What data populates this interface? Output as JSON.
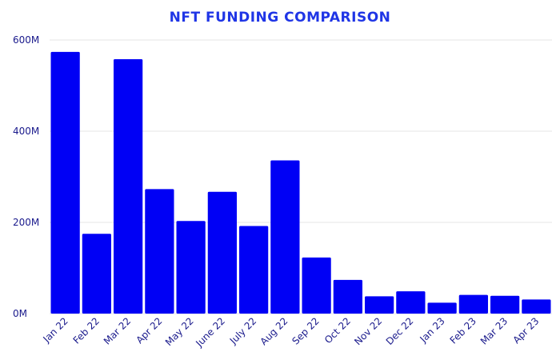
{
  "chart_data": {
    "type": "bar",
    "title": "NFT FUNDING COMPARISON",
    "xlabel": "",
    "ylabel": "",
    "categories": [
      "Jan 22",
      "Feb 22",
      "Mar 22",
      "Apr 22",
      "May 22",
      "June 22",
      "July 22",
      "Aug 22",
      "Sep 22",
      "Oct 22",
      "Nov 22",
      "Dec 22",
      "Jan 23",
      "Feb 23",
      "Mar 23",
      "Apr 23"
    ],
    "values": [
      574,
      175,
      558,
      273,
      203,
      267,
      192,
      336,
      123,
      74,
      38,
      49,
      24,
      41,
      39,
      31
    ],
    "value_unit": "M",
    "ylim": [
      0,
      600
    ],
    "yticks": [
      0,
      200,
      400,
      600
    ],
    "ytick_labels": [
      "0M",
      "200M",
      "400M",
      "600M"
    ],
    "grid": true,
    "colors": {
      "bar": "#0000f5",
      "title": "#1f35e6",
      "axis_text": "#1a1a8c",
      "grid": "#e6e6e6"
    }
  }
}
